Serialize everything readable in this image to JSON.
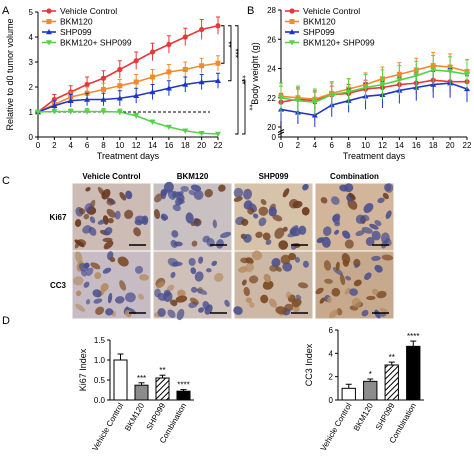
{
  "panel_labels": [
    "A",
    "B",
    "C",
    "D"
  ],
  "colors": {
    "vehicle": "#e8383b",
    "bkm120": "#f28a2e",
    "shp099": "#1f35c8",
    "combo": "#56d24a",
    "tissue_bg": "#d9c4b0",
    "nucleus_neg": "#4a4f8e",
    "nucleus_pos": "#6b3a1e",
    "cyto_pos": "#b8864f"
  },
  "chart_data": [
    {
      "type": "line",
      "panel": "A",
      "title": "",
      "xlabel": "Treatment days",
      "ylabel": "Relative to d0 tumor volume",
      "x": [
        0,
        2,
        4,
        6,
        8,
        10,
        12,
        14,
        16,
        18,
        20,
        22
      ],
      "xlim": [
        0,
        22
      ],
      "ylim": [
        0,
        5
      ],
      "xticks": [
        "0",
        "2",
        "4",
        "6",
        "8",
        "10",
        "12",
        "14",
        "16",
        "18",
        "20",
        "22"
      ],
      "yticks": [
        "0",
        "1",
        "2",
        "3",
        "4",
        "5"
      ],
      "reference_line": 1,
      "series": [
        {
          "name": "Vehicle Control",
          "key": "vehicle",
          "values": [
            1.0,
            1.5,
            1.8,
            2.1,
            2.35,
            2.7,
            3.05,
            3.4,
            3.7,
            4.0,
            4.3,
            4.45
          ],
          "errors": [
            0,
            0.2,
            0.25,
            0.3,
            0.3,
            0.35,
            0.35,
            0.35,
            0.35,
            0.35,
            0.4,
            0.35
          ]
        },
        {
          "name": "BKM120",
          "key": "bkm120",
          "values": [
            1.0,
            1.3,
            1.6,
            1.75,
            1.9,
            2.05,
            2.2,
            2.4,
            2.6,
            2.7,
            2.85,
            2.95
          ],
          "errors": [
            0,
            0.15,
            0.2,
            0.25,
            0.25,
            0.25,
            0.3,
            0.3,
            0.3,
            0.3,
            0.3,
            0.3
          ]
        },
        {
          "name": "SHP099",
          "key": "shp099",
          "values": [
            1.0,
            1.25,
            1.45,
            1.5,
            1.5,
            1.55,
            1.65,
            1.8,
            1.95,
            2.1,
            2.2,
            2.25
          ],
          "errors": [
            0,
            0.2,
            0.25,
            0.25,
            0.25,
            0.3,
            0.3,
            0.3,
            0.3,
            0.3,
            0.3,
            0.3
          ]
        },
        {
          "name": "BKM120+ SHP099",
          "key": "combo",
          "values": [
            1.0,
            1.02,
            1.02,
            1.02,
            1.02,
            1.0,
            0.85,
            0.6,
            0.4,
            0.25,
            0.15,
            0.12
          ],
          "errors": [
            0,
            0.1,
            0.1,
            0.12,
            0.12,
            0.12,
            0.1,
            0.08,
            0.05,
            0.04,
            0.03,
            0.03
          ]
        }
      ],
      "legend": [
        "Vehicle Control",
        "BKM120",
        "SHP099",
        "BKM120+ SHP099"
      ],
      "legend_position": "top-left",
      "significance": [
        "**",
        "***",
        "***",
        "**"
      ]
    },
    {
      "type": "line",
      "panel": "B",
      "title": "",
      "xlabel": "Treatment days",
      "ylabel": "Body weight (g)",
      "x": [
        0,
        2,
        4,
        6,
        8,
        10,
        12,
        14,
        16,
        18,
        20,
        22
      ],
      "xlim": [
        0,
        22
      ],
      "ylim": [
        0,
        28
      ],
      "axis_break": [
        0,
        18
      ],
      "xticks": [
        "0",
        "2",
        "4",
        "6",
        "8",
        "10",
        "12",
        "14",
        "16",
        "18",
        "20",
        "22"
      ],
      "yticks": [
        "0",
        "20",
        "22",
        "24",
        "26",
        "28"
      ],
      "series": [
        {
          "name": "Vehicle Control",
          "key": "vehicle",
          "values": [
            21.7,
            21.9,
            21.8,
            22.2,
            22.3,
            22.6,
            22.7,
            22.9,
            23.0,
            23.2,
            23.1,
            23.1
          ],
          "errors": [
            0.6,
            0.7,
            0.6,
            0.6,
            0.6,
            0.6,
            0.7,
            0.7,
            0.7,
            0.8,
            0.8,
            0.7
          ]
        },
        {
          "name": "BKM120",
          "key": "bkm120",
          "values": [
            22.1,
            22.0,
            21.9,
            22.3,
            22.6,
            22.9,
            23.3,
            23.6,
            23.9,
            24.2,
            24.1,
            23.8
          ],
          "errors": [
            0.7,
            0.7,
            0.6,
            0.7,
            0.7,
            0.8,
            0.8,
            0.8,
            0.8,
            0.9,
            0.9,
            0.8
          ]
        },
        {
          "name": "SHP099",
          "key": "shp099",
          "values": [
            21.2,
            21.0,
            20.8,
            21.5,
            21.8,
            22.1,
            22.2,
            22.5,
            22.7,
            22.9,
            23.0,
            22.6
          ],
          "errors": [
            0.8,
            0.8,
            0.8,
            0.8,
            0.8,
            0.9,
            0.9,
            0.9,
            0.9,
            0.9,
            1.0,
            0.9
          ]
        },
        {
          "name": "BKM120+ SHP099",
          "key": "combo",
          "values": [
            22.0,
            21.8,
            21.7,
            22.2,
            22.4,
            22.7,
            22.9,
            23.2,
            23.5,
            23.9,
            23.8,
            23.6
          ],
          "errors": [
            1.0,
            1.0,
            0.9,
            0.9,
            0.9,
            0.9,
            1.0,
            1.0,
            1.0,
            1.0,
            1.0,
            1.0
          ]
        }
      ],
      "legend": [
        "Vehicle Control",
        "BKM120",
        "SHP099",
        "BKM120+ SHP099"
      ],
      "legend_position": "top-left"
    },
    {
      "type": "bar",
      "panel": "D-left",
      "title": "",
      "ylabel": "Ki67 Index",
      "categories": [
        "Vehicle Control",
        "BKM120",
        "SHP099",
        "Combination"
      ],
      "values": [
        1.0,
        0.37,
        0.55,
        0.22
      ],
      "errors": [
        0.15,
        0.06,
        0.07,
        0.04
      ],
      "significance": [
        "",
        "***",
        "**",
        "****"
      ],
      "fills": [
        "white",
        "gray",
        "hatched",
        "black"
      ],
      "ylim": [
        0,
        1.5
      ],
      "yticks": [
        "0.0",
        "0.5",
        "1.0",
        "1.5"
      ]
    },
    {
      "type": "bar",
      "panel": "D-right",
      "title": "",
      "ylabel": "CC3 Index",
      "categories": [
        "Vehicle Control",
        "BKM120",
        "SHP099",
        "Combination"
      ],
      "values": [
        1.0,
        1.6,
        3.0,
        4.6
      ],
      "errors": [
        0.35,
        0.2,
        0.25,
        0.45
      ],
      "significance": [
        "",
        "*",
        "**",
        "****"
      ],
      "fills": [
        "white",
        "gray",
        "hatched",
        "black"
      ],
      "ylim": [
        0,
        6
      ],
      "yticks": [
        "0",
        "2",
        "4",
        "6"
      ]
    }
  ],
  "panel_c": {
    "columns": [
      "Vehicle  Control",
      "BKM120",
      "SHP099",
      "Combination"
    ],
    "rows": [
      "Ki67",
      "CC3"
    ],
    "ki67_positive_fraction": [
      0.55,
      0.2,
      0.35,
      0.1
    ],
    "cc3_positive_fraction": [
      0.1,
      0.2,
      0.35,
      0.55
    ]
  }
}
